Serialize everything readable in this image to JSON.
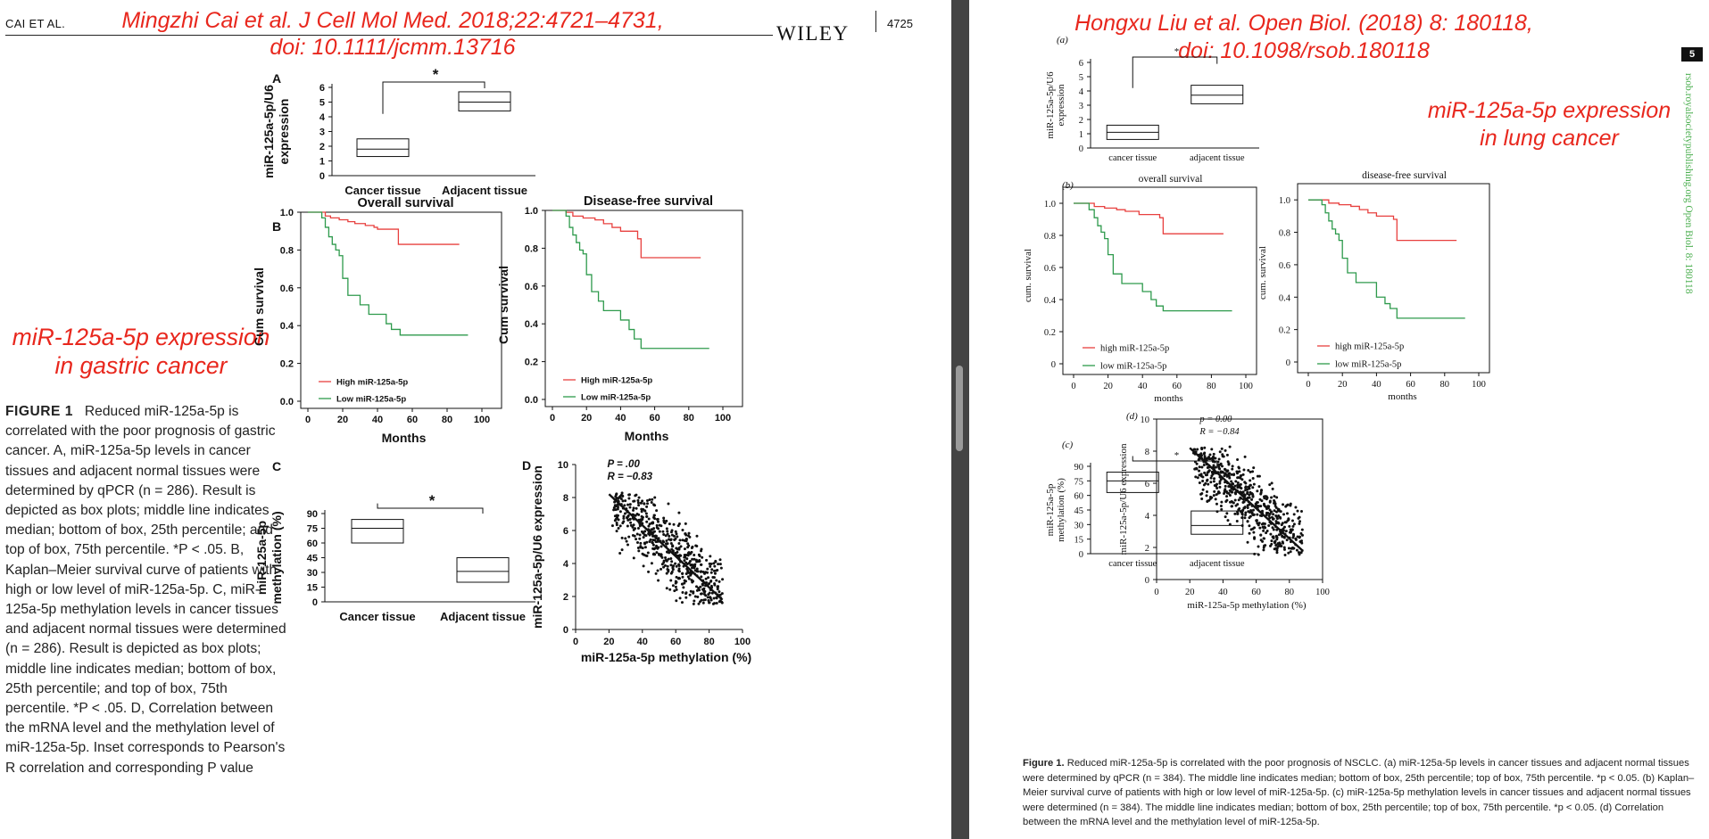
{
  "left_page": {
    "running_head": "CAI ET AL.",
    "publisher": "WILEY",
    "page_number": "4725",
    "citation_line1": "Mingzhi Cai et al. J Cell Mol Med. 2018;22:4721–4731,",
    "citation_line2": "doi: 10.1111/jcmm.13716",
    "topic_line1": "miR-125a-5p expression",
    "topic_line2": "in gastric cancer",
    "caption_label": "FIGURE 1",
    "caption_text": "Reduced miR-125a-5p is correlated with the poor prognosis of gastric cancer. A, miR-125a-5p levels in cancer tissues and adjacent normal tissues were determined by qPCR (n = 286). Result is depicted as box plots; middle line indicates median; bottom of box, 25th percentile; and top of box, 75th percentile. *P < .05. B, Kaplan–Meier survival curve of patients with high or low level of miR-125a-5p. C, miR-125a-5p methylation levels in cancer tissues and adjacent normal tissues were determined (n = 286). Result is depicted as box plots; middle line indicates median; bottom of box, 25th percentile; and top of box, 75th percentile. *P < .05. D, Correlation between the mRNA level and the methylation level of miR-125a-5p. Inset corresponds to Pearson's R correlation and corresponding P value"
  },
  "right_page": {
    "page_number": "5",
    "citation_line1": "Hongxu Liu et al. Open Biol. (2018) 8: 180118,",
    "citation_line2": "doi: 10.1098/rsob.180118",
    "topic_line1": "miR-125a-5p expression",
    "topic_line2": "in lung cancer",
    "side_running_text": "rsob.royalsocietypublishing.org  Open Biol. 8: 180118",
    "caption_label": "Figure 1.",
    "caption_text": "Reduced miR-125a-5p is correlated with the poor prognosis of NSCLC. (a) miR-125a-5p levels in cancer tissues and adjacent normal tissues were determined by qPCR (n = 384). The middle line indicates median; bottom of box, 25th percentile; top of box, 75th percentile. *p < 0.05. (b) Kaplan–Meier survival curve of patients with high or low level of miR-125a-5p. (c) miR-125a-5p methylation levels in cancer tissues and adjacent normal tissues were determined (n = 384). The middle line indicates median; bottom of box, 25th percentile; top of box, 75th percentile. *p < 0.05. (d) Correlation between the mRNA level and the methylation level of miR-125a-5p."
  },
  "colors": {
    "annotation_red": "#e8271d",
    "high_series": "#e8403f",
    "low_series": "#2e9a4c",
    "journal_green": "#4caf50"
  },
  "chart_data": [
    {
      "id": "L_A",
      "panel_label": "A",
      "type": "box",
      "categories": [
        "Cancer tissue",
        "Adjacent tissue"
      ],
      "boxes": [
        {
          "q1": 1.3,
          "median": 1.8,
          "q3": 2.5,
          "whisker_top": 4.2
        },
        {
          "q1": 4.4,
          "median": 5.0,
          "q3": 5.7,
          "whisker_top": 5.7
        }
      ],
      "ylabel_lines": [
        "miR-125a-5p/U6",
        "expression"
      ],
      "ylim": [
        0,
        6
      ],
      "yticks": [
        0,
        1,
        2,
        3,
        4,
        5,
        6
      ],
      "significance": "*"
    },
    {
      "id": "L_B1",
      "panel_label": "B",
      "type": "line",
      "title": "Overall survival",
      "xlabel": "Months",
      "ylabel": "Cum survival",
      "xlim": [
        0,
        100
      ],
      "ylim": [
        0,
        1
      ],
      "xticks": [
        0,
        20,
        40,
        60,
        80,
        100
      ],
      "yticks": [
        0.0,
        0.2,
        0.4,
        0.6,
        0.8,
        1.0
      ],
      "ytick_labels": [
        "0.0",
        "0.2",
        "0.4",
        "0.6",
        "0.8",
        "1.0"
      ],
      "legend_placement": "bottom-left",
      "series": [
        {
          "name": "High miR-125a-5p",
          "color": "#e8403f",
          "x": [
            0,
            5,
            10,
            13,
            18,
            23,
            27,
            33,
            38,
            40,
            42,
            50,
            52,
            60,
            70,
            87
          ],
          "y": [
            1,
            1,
            0.98,
            0.97,
            0.96,
            0.95,
            0.94,
            0.93,
            0.92,
            0.91,
            0.91,
            0.91,
            0.83,
            0.83,
            0.83,
            0.83
          ]
        },
        {
          "name": "Low miR-125a-5p",
          "color": "#2e9a4c",
          "x": [
            0,
            5,
            8,
            10,
            12,
            14,
            16,
            18,
            20,
            23,
            25,
            30,
            35,
            40,
            45,
            48,
            50,
            53,
            92
          ],
          "y": [
            1,
            1,
            0.97,
            0.92,
            0.87,
            0.83,
            0.8,
            0.77,
            0.65,
            0.56,
            0.56,
            0.51,
            0.46,
            0.46,
            0.41,
            0.38,
            0.38,
            0.35,
            0.35
          ]
        }
      ]
    },
    {
      "id": "L_B2",
      "type": "line",
      "title": "Disease-free survival",
      "xlabel": "Months",
      "ylabel": "Cum survival",
      "xlim": [
        0,
        100
      ],
      "ylim": [
        0,
        1
      ],
      "xticks": [
        0,
        20,
        40,
        60,
        80,
        100
      ],
      "yticks": [
        0.0,
        0.2,
        0.4,
        0.6,
        0.8,
        1.0
      ],
      "ytick_labels": [
        "0.0",
        "0.2",
        "0.4",
        "0.6",
        "0.8",
        "1.0"
      ],
      "legend_placement": "bottom-left",
      "series": [
        {
          "name": "High miR-125a-5p",
          "color": "#e8403f",
          "x": [
            0,
            8,
            12,
            18,
            25,
            30,
            35,
            40,
            48,
            50,
            52,
            60,
            70,
            87
          ],
          "y": [
            1,
            0.99,
            0.97,
            0.96,
            0.95,
            0.93,
            0.91,
            0.89,
            0.89,
            0.85,
            0.75,
            0.75,
            0.75,
            0.75
          ]
        },
        {
          "name": "Low miR-125a-5p",
          "color": "#2e9a4c",
          "x": [
            0,
            5,
            8,
            10,
            12,
            14,
            16,
            18,
            20,
            23,
            27,
            30,
            35,
            40,
            45,
            48,
            50,
            52,
            92
          ],
          "y": [
            1,
            1,
            0.97,
            0.91,
            0.87,
            0.83,
            0.79,
            0.77,
            0.66,
            0.57,
            0.52,
            0.47,
            0.47,
            0.42,
            0.37,
            0.32,
            0.32,
            0.27,
            0.27
          ]
        }
      ]
    },
    {
      "id": "L_C",
      "panel_label": "C",
      "type": "box",
      "categories": [
        "Cancer tissue",
        "Adjacent tissue"
      ],
      "boxes": [
        {
          "q1": 60,
          "median": 75,
          "q3": 84,
          "whisker_top": 84
        },
        {
          "q1": 20,
          "median": 31,
          "q3": 45,
          "whisker_top": 100
        }
      ],
      "ylabel_lines": [
        "miR-125a-5p",
        "methylation (%)"
      ],
      "ylim": [
        0,
        90
      ],
      "yticks": [
        0,
        15,
        30,
        45,
        60,
        75,
        90
      ],
      "significance": "*"
    },
    {
      "id": "L_D",
      "panel_label": "D",
      "type": "scatter",
      "xlabel": "miR-125a-5p methylation (%)",
      "ylabel": "miR-125a-5p/U6 expression",
      "xlim": [
        0,
        100
      ],
      "ylim": [
        0,
        10
      ],
      "xticks": [
        0,
        20,
        40,
        60,
        80,
        100
      ],
      "yticks": [
        0,
        2,
        4,
        6,
        8,
        10
      ],
      "annotation_lines": [
        "P = .00",
        "R = −0.83"
      ],
      "fit_line": {
        "x": [
          20,
          88
        ],
        "y": [
          8.2,
          1.8
        ]
      },
      "point_cloud": {
        "n": 650,
        "x_range": [
          22,
          88
        ],
        "y_range": [
          1.5,
          8.3
        ],
        "seed": 11
      }
    },
    {
      "id": "R_A",
      "panel_label": "(a)",
      "type": "box",
      "categories": [
        "cancer tissue",
        "adjacent tissue"
      ],
      "boxes": [
        {
          "q1": 0.6,
          "median": 1.1,
          "q3": 1.6,
          "whisker_top": 4.2
        },
        {
          "q1": 3.1,
          "median": 3.7,
          "q3": 4.4,
          "whisker_top": 5.9
        }
      ],
      "ylabel_lines": [
        "miR-125a-5p/U6",
        "expression"
      ],
      "ylim": [
        0,
        6
      ],
      "yticks": [
        0,
        1,
        2,
        3,
        4,
        5,
        6
      ],
      "significance": "*"
    },
    {
      "id": "R_B1",
      "panel_label": "(b)",
      "type": "line",
      "title": "overall survival",
      "xlabel": "months",
      "ylabel": "cum. survival",
      "xlim": [
        0,
        100
      ],
      "ylim": [
        0,
        1.1
      ],
      "xticks": [
        0,
        20,
        40,
        60,
        80,
        100
      ],
      "yticks": [
        0,
        0.2,
        0.4,
        0.6,
        0.8,
        1.0
      ],
      "ytick_labels": [
        "0",
        "0.2",
        "0.4",
        "0.6",
        "0.8",
        "1.0"
      ],
      "legend_placement": "bottom-left",
      "series": [
        {
          "name": "high miR-125a-5p",
          "color": "#e8403f",
          "x": [
            0,
            8,
            12,
            18,
            25,
            30,
            38,
            45,
            50,
            52,
            60,
            70,
            87
          ],
          "y": [
            1,
            1,
            0.98,
            0.97,
            0.96,
            0.95,
            0.93,
            0.93,
            0.91,
            0.81,
            0.81,
            0.81,
            0.81
          ]
        },
        {
          "name": "low miR-125a-5p",
          "color": "#2e9a4c",
          "x": [
            0,
            6,
            9,
            12,
            14,
            16,
            18,
            20,
            23,
            28,
            34,
            40,
            45,
            48,
            50,
            52,
            92
          ],
          "y": [
            1,
            1,
            0.96,
            0.91,
            0.86,
            0.82,
            0.78,
            0.68,
            0.56,
            0.5,
            0.5,
            0.45,
            0.4,
            0.36,
            0.36,
            0.33,
            0.33
          ]
        }
      ]
    },
    {
      "id": "R_B2",
      "type": "line",
      "title": "disease-free survival",
      "xlabel": "months",
      "ylabel": "cum. survival",
      "xlim": [
        0,
        100
      ],
      "ylim": [
        0,
        1.1
      ],
      "xticks": [
        0,
        20,
        40,
        60,
        80,
        100
      ],
      "yticks": [
        0,
        0.2,
        0.4,
        0.6,
        0.8,
        1.0
      ],
      "ytick_labels": [
        "0",
        "0.2",
        "0.4",
        "0.6",
        "0.8",
        "1.0"
      ],
      "legend_placement": "bottom-left",
      "series": [
        {
          "name": "high miR-125a-5p",
          "color": "#e8403f",
          "x": [
            0,
            8,
            12,
            18,
            25,
            30,
            35,
            40,
            48,
            50,
            52,
            60,
            70,
            87
          ],
          "y": [
            1,
            1,
            0.98,
            0.97,
            0.96,
            0.94,
            0.92,
            0.9,
            0.9,
            0.88,
            0.75,
            0.75,
            0.75,
            0.75
          ]
        },
        {
          "name": "low miR-125a-5p",
          "color": "#2e9a4c",
          "x": [
            0,
            5,
            8,
            10,
            12,
            14,
            16,
            18,
            20,
            23,
            28,
            32,
            40,
            45,
            48,
            50,
            52,
            92
          ],
          "y": [
            1,
            1,
            0.97,
            0.92,
            0.87,
            0.82,
            0.79,
            0.75,
            0.64,
            0.55,
            0.49,
            0.49,
            0.4,
            0.36,
            0.33,
            0.33,
            0.27,
            0.27
          ]
        }
      ]
    },
    {
      "id": "R_C",
      "panel_label": "(c)",
      "type": "box",
      "categories": [
        "cancer tissue",
        "adjacent tissue"
      ],
      "boxes": [
        {
          "q1": 63,
          "median": 75,
          "q3": 84,
          "whisker_top": 100
        },
        {
          "q1": 20,
          "median": 29,
          "q3": 44,
          "whisker_top": 100
        }
      ],
      "ylabel_lines": [
        "miR-125a-5p",
        "methylation (%)"
      ],
      "ylim": [
        0,
        90
      ],
      "yticks": [
        0,
        15,
        30,
        45,
        60,
        75,
        90
      ],
      "significance": "*"
    },
    {
      "id": "R_D",
      "panel_label": "(d)",
      "type": "scatter",
      "xlabel": "miR-125a-5p methylation (%)",
      "ylabel": "miR-125a-5p/U6 expression",
      "xlim": [
        0,
        100
      ],
      "ylim": [
        0,
        10
      ],
      "xticks": [
        0,
        20,
        40,
        60,
        80,
        100
      ],
      "yticks": [
        0,
        2,
        4,
        6,
        8,
        10
      ],
      "annotation_lines": [
        "p = 0.00",
        "R = −0.84"
      ],
      "fit_line": {
        "x": [
          20,
          88
        ],
        "y": [
          8.2,
          1.8
        ]
      },
      "point_cloud": {
        "n": 650,
        "x_range": [
          22,
          88
        ],
        "y_range": [
          1.5,
          8.3
        ],
        "seed": 23
      }
    }
  ]
}
